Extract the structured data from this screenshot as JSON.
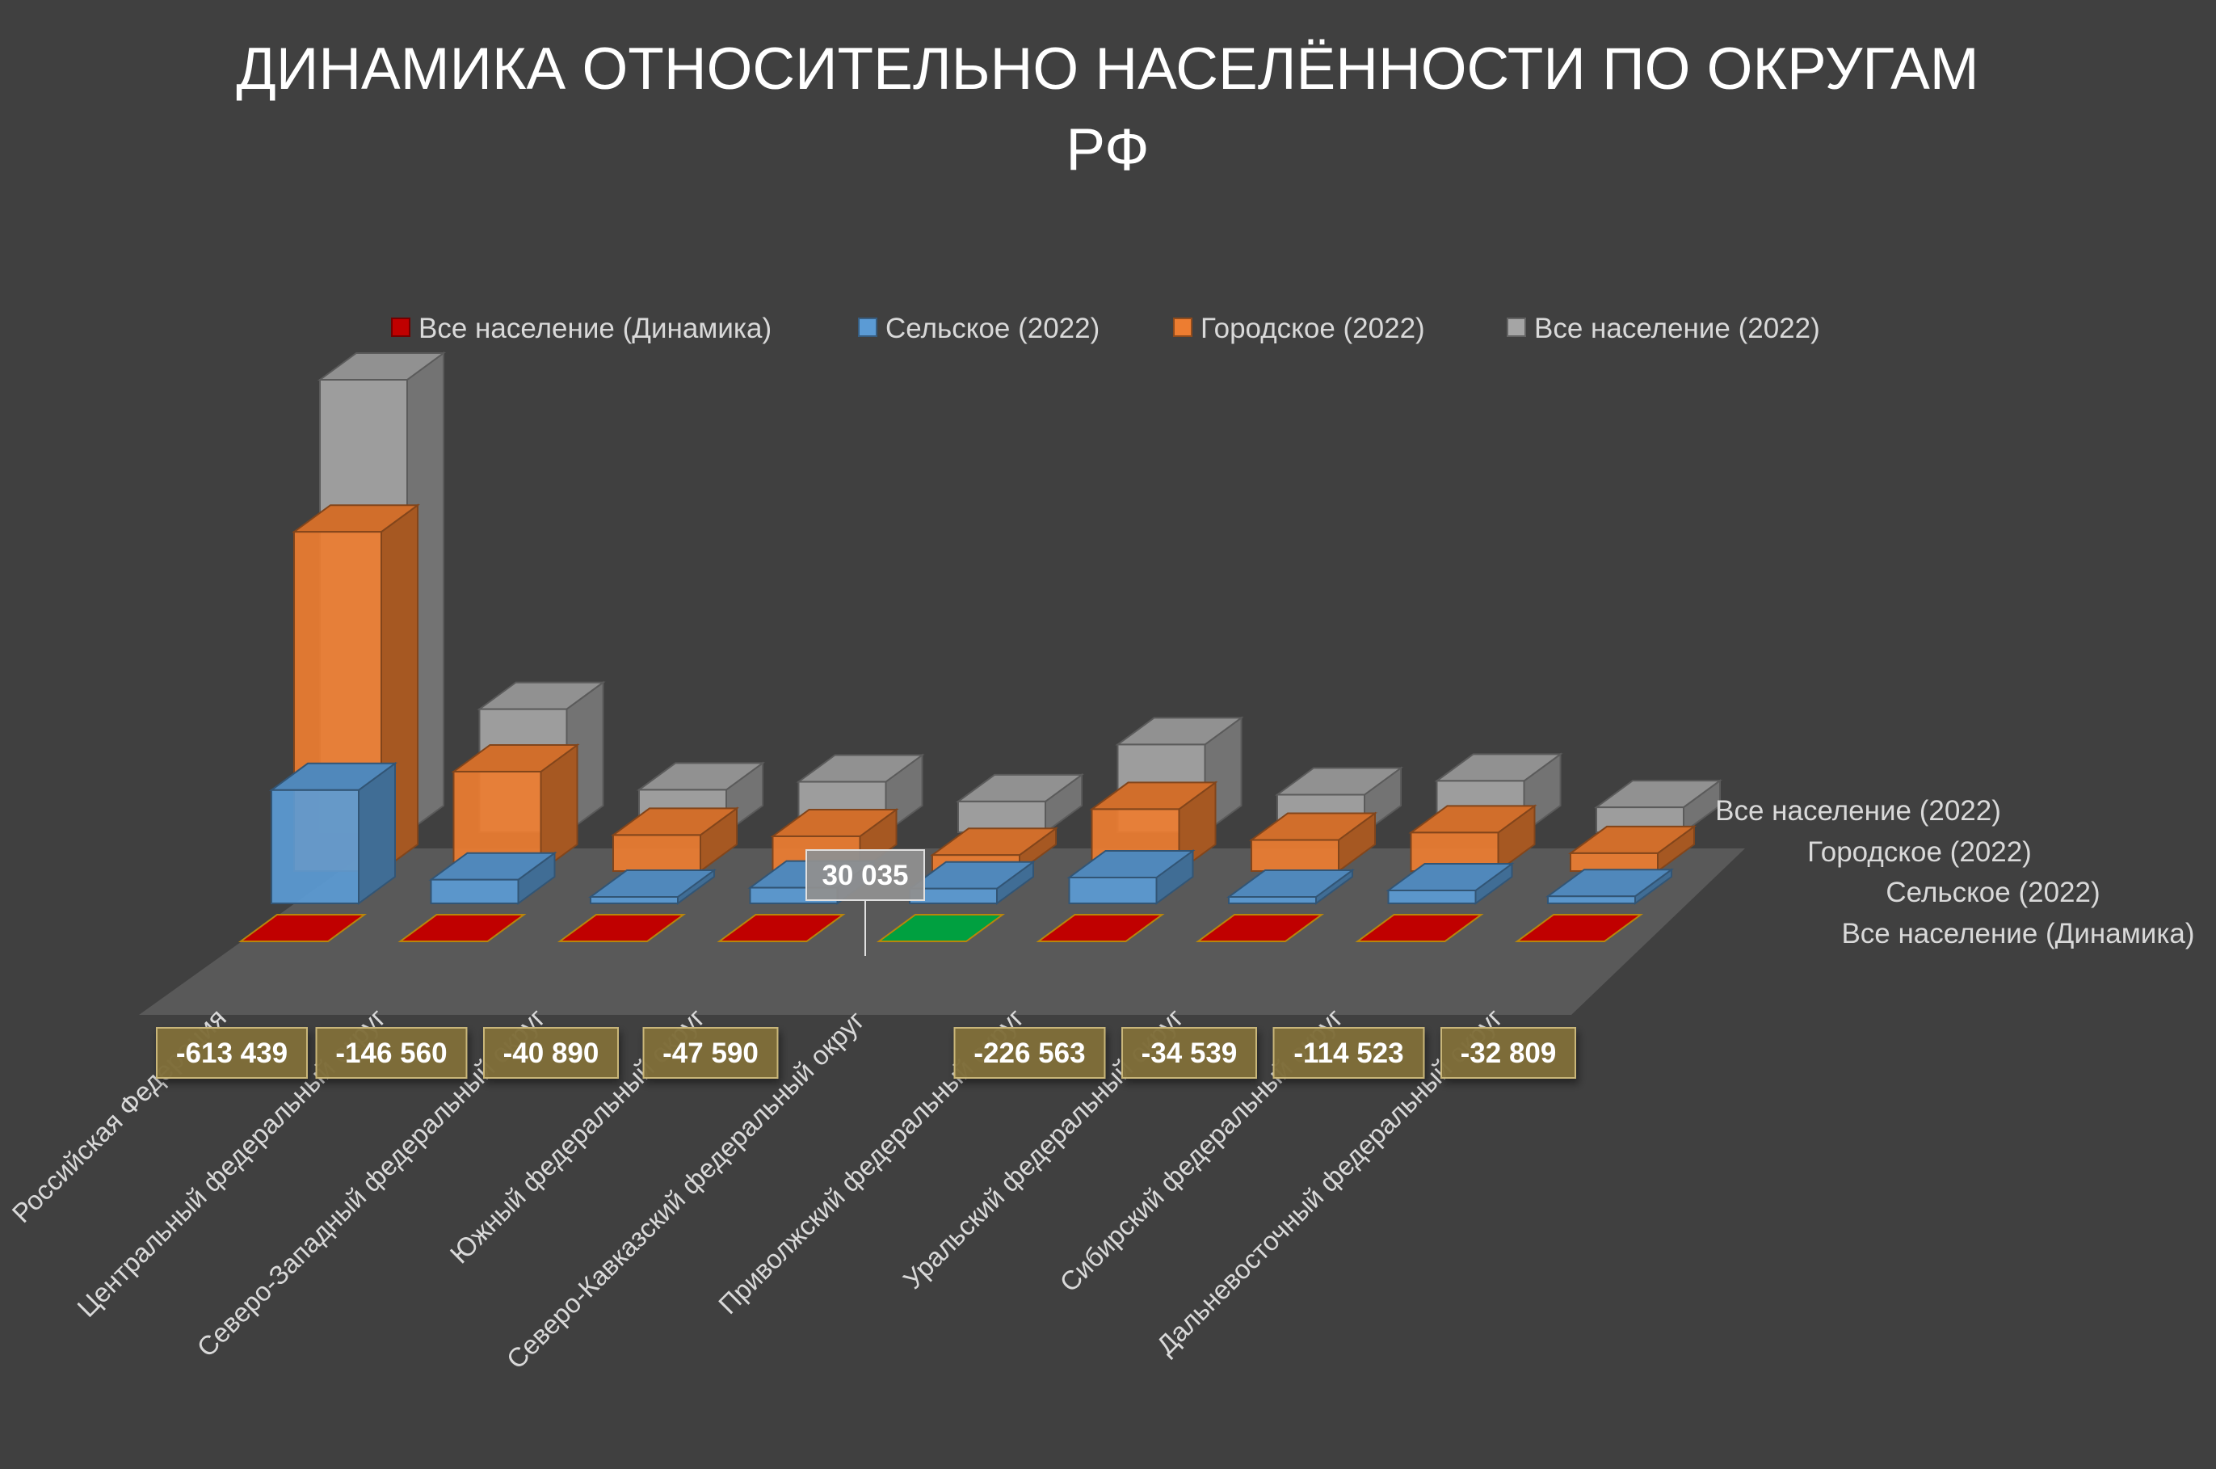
{
  "chart_data": {
    "type": "bar",
    "title_lines": [
      "ДИНАМИКА ОТНОСИТЕЛЬНО НАСЕЛЁННОСТИ ПО ОКРУГАМ",
      "РФ"
    ],
    "categories": [
      "Российская Федерация",
      "Центральный федеральный округ",
      "Северо-Западный федеральный округ",
      "Южный федеральный округ",
      "Северо-Кавказский федеральный округ",
      "Приволжский федеральный округ",
      "Уральский федеральный округ",
      "Сибирский федеральный округ",
      "Дальневосточный федеральный округ"
    ],
    "series": [
      {
        "name": "Все население (Динамика)",
        "values": [
          -613439,
          -146560,
          -40890,
          -47590,
          30035,
          -226563,
          -34539,
          -114523,
          -32809
        ],
        "labels": [
          "-613 439",
          "-146 560",
          "-40 890",
          "-47 590",
          "30 035",
          "-226 563",
          "-34 539",
          "-114 523",
          "-32 809"
        ],
        "color": "#c00000",
        "positive_color": "#00a040"
      },
      {
        "name": "Сельское (2022)",
        "values": [
          36800000,
          7700000,
          2100000,
          5100000,
          4800000,
          8400000,
          2100000,
          4200000,
          2300000
        ],
        "color": "#5b9bd5"
      },
      {
        "name": "Городское (2022)",
        "values": [
          110200000,
          32300000,
          11700000,
          11300000,
          5200000,
          20100000,
          10100000,
          12500000,
          5800000
        ],
        "color": "#ed7d31"
      },
      {
        "name": "Все население (2022)",
        "values": [
          147000000,
          40000000,
          13800000,
          16400000,
          10000000,
          28500000,
          12200000,
          16700000,
          8100000
        ],
        "color": "#a5a5a5"
      }
    ],
    "legend_position": "top",
    "gridlines": false
  }
}
